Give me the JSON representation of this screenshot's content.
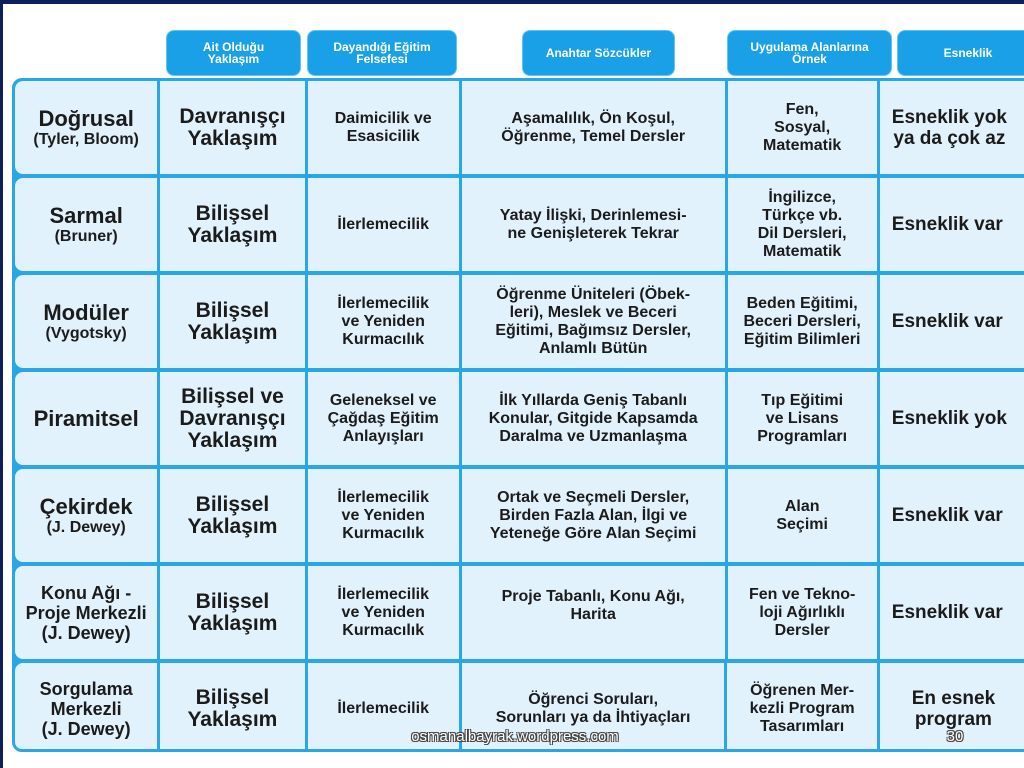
{
  "headers": [
    "Ait Olduğu\nYaklaşım",
    "Dayandığı Eğitim\nFelsefesi",
    "Anahtar Sözcükler",
    "Uygulama Alanlarına\nÖrnek",
    "Esneklik"
  ],
  "rows": [
    {
      "model": "Doğrusal",
      "ref": "(Tyler, Bloom)",
      "approach": "Davranışçı\nYaklaşım",
      "philosophy": "Daimicilik ve\nEsasicilik",
      "keywords": "Aşamalılık, Ön Koşul,\nÖğrenme, Temel Dersler",
      "examples": "Fen,\nSosyal,\nMatematik",
      "flexibility": "Esneklik yok\nya da çok az"
    },
    {
      "model": "Sarmal",
      "ref": "(Bruner)",
      "approach": "Bilişsel\nYaklaşım",
      "philosophy": "İlerlemecilik",
      "keywords": "Yatay İlişki, Derinlemesi-\nne Genişleterek Tekrar",
      "examples": "İngilizce,\nTürkçe vb.\nDil Dersleri,\nMatematik",
      "flexibility": "Esneklik var"
    },
    {
      "model": "Modüler",
      "ref": "(Vygotsky)",
      "approach": "Bilişsel\nYaklaşım",
      "philosophy": "İlerlemecilik\nve Yeniden\nKurmacılık",
      "keywords": "Öğrenme Üniteleri (Öbek-\nleri), Meslek ve Beceri\nEğitimi, Bağımsız Dersler,\nAnlamlı Bütün",
      "examples": "Beden Eğitimi,\nBeceri Dersleri,\nEğitim Bilimleri",
      "flexibility": "Esneklik var"
    },
    {
      "model": "Piramitsel",
      "ref": "",
      "approach": "Bilişsel ve\nDavranışçı\nYaklaşım",
      "philosophy": "Geleneksel ve\nÇağdaş Eğitim\nAnlayışları",
      "keywords": "İlk Yıllarda Geniş Tabanlı\nKonular, Gitgide Kapsamda\nDaralma ve Uzmanlaşma",
      "examples": "Tıp Eğitimi\nve Lisans\nProgramları",
      "flexibility": "Esneklik yok"
    },
    {
      "model": "Çekirdek",
      "ref": "(J. Dewey)",
      "approach": "Bilişsel\nYaklaşım",
      "philosophy": "İlerlemecilik\nve Yeniden\nKurmacılık",
      "keywords": "Ortak ve Seçmeli Dersler,\nBirden Fazla Alan, İlgi ve\nYeteneğe Göre Alan Seçimi",
      "examples": "Alan\nSeçimi",
      "flexibility": "Esneklik var"
    },
    {
      "model": "Konu Ağı -\nProje Merkezli",
      "ref": "(J. Dewey)",
      "approach": "Bilişsel\nYaklaşım",
      "philosophy": "İlerlemecilik\nve Yeniden\nKurmacılık",
      "keywords": "Proje Tabanlı, Konu Ağı,\nHarita",
      "examples": "Fen ve Tekno-\nloji Ağırlıklı\nDersler",
      "flexibility": "Esneklik var"
    },
    {
      "model": "Sorgulama\nMerkezli",
      "ref": "(J. Dewey)",
      "approach": "Bilişsel\nYaklaşım",
      "philosophy": "İlerlemecilik",
      "keywords": "Öğrenci Soruları,\nSorunları ya da İhtiyaçları",
      "examples": "Öğrenen Mer-\nkezli Program\nTasarımları",
      "flexibility": "En esnek\nprogram"
    }
  ],
  "footer": {
    "site": "osmanalbayrak.wordpress.com",
    "page": "30"
  }
}
